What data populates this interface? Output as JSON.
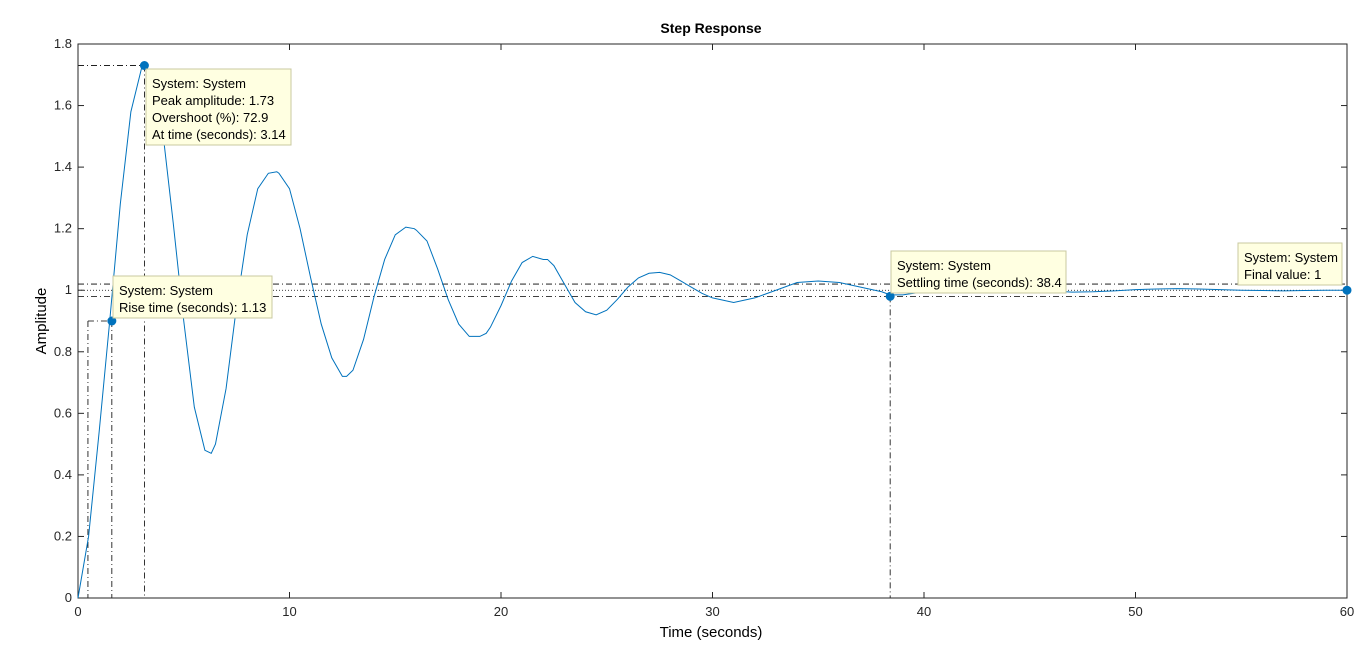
{
  "chart_data": {
    "type": "line",
    "title": "Step Response",
    "xlabel": "Time (seconds)",
    "ylabel": "Amplitude",
    "xlim": [
      0,
      60
    ],
    "ylim": [
      0,
      1.8
    ],
    "x_ticks": [
      0,
      10,
      20,
      30,
      40,
      50,
      60
    ],
    "x_tick_labels": [
      "0",
      "10",
      "20",
      "30",
      "40",
      "50",
      "60"
    ],
    "y_ticks": [
      0,
      0.2,
      0.4,
      0.6,
      0.8,
      1,
      1.2,
      1.4,
      1.6,
      1.8
    ],
    "y_tick_labels": [
      "0",
      "0.2",
      "0.4",
      "0.6",
      "0.8",
      "1",
      "1.2",
      "1.4",
      "1.6",
      "1.8"
    ],
    "grid": false,
    "legend": "none",
    "colors": {
      "line": "#0072BD",
      "marker": "#0072BD",
      "tip_bg": "#FFFFE1",
      "tip_border": "#C8C8A0"
    },
    "system": {
      "final_value": 1,
      "peak_amplitude": 1.73,
      "overshoot_pct": 72.9,
      "peak_time": 3.14,
      "rise_time": 1.13,
      "settling_time": 38.4,
      "end_time": 60,
      "settle_band_pct": 2
    },
    "series": [
      {
        "x": [
          0,
          0.5,
          1,
          1.5,
          2,
          2.5,
          3,
          3.14,
          3.5,
          4,
          4.5,
          5,
          5.5,
          6,
          6.3,
          6.5,
          7,
          7.5,
          8,
          8.5,
          9,
          9.4,
          9.5,
          10,
          10.5,
          11,
          11.5,
          12,
          12.5,
          12.7,
          13,
          13.5,
          14,
          14.5,
          15,
          15.5,
          15.9,
          16,
          16.5,
          17,
          17.5,
          18,
          18.5,
          19,
          19.3,
          19.5,
          20,
          20.5,
          21,
          21.5,
          22,
          22.2,
          22.5,
          23,
          23.5,
          24,
          24.5,
          25,
          25.5,
          26,
          26.5,
          27,
          27.5,
          28,
          28.5,
          29,
          29.5,
          30,
          31,
          32,
          33,
          34,
          35,
          36,
          37,
          38,
          38.4,
          39,
          40,
          41,
          42,
          43,
          44,
          45,
          46,
          47,
          48,
          49,
          50,
          51,
          52,
          53,
          54,
          55,
          56,
          57,
          58,
          59,
          60
        ],
        "y": [
          0,
          0.2,
          0.54,
          0.9,
          1.28,
          1.58,
          1.72,
          1.73,
          1.7,
          1.52,
          1.22,
          0.9,
          0.62,
          0.48,
          0.47,
          0.5,
          0.68,
          0.95,
          1.18,
          1.33,
          1.38,
          1.385,
          1.38,
          1.33,
          1.2,
          1.04,
          0.89,
          0.78,
          0.72,
          0.72,
          0.74,
          0.84,
          0.98,
          1.1,
          1.18,
          1.205,
          1.2,
          1.195,
          1.16,
          1.07,
          0.97,
          0.89,
          0.85,
          0.85,
          0.86,
          0.88,
          0.95,
          1.03,
          1.09,
          1.11,
          1.1,
          1.1,
          1.08,
          1.02,
          0.96,
          0.93,
          0.92,
          0.935,
          0.97,
          1.01,
          1.04,
          1.055,
          1.058,
          1.05,
          1.03,
          1.01,
          0.99,
          0.975,
          0.96,
          0.975,
          1.0,
          1.025,
          1.03,
          1.025,
          1.01,
          0.995,
          0.985,
          0.985,
          0.995,
          1.005,
          1.012,
          1.014,
          1.01,
          1.004,
          0.998,
          0.994,
          0.995,
          0.998,
          1.002,
          1.004,
          1.005,
          1.004,
          1.002,
          1.0,
          0.999,
          0.998,
          0.999,
          1.0,
          1.0
        ]
      }
    ],
    "datatips": [
      {
        "lines": [
          "System: System",
          "Peak amplitude: 1.73",
          "Overshoot (%): 72.9",
          "At time (seconds): 3.14"
        ]
      },
      {
        "lines": [
          "System: System",
          "Rise time (seconds): 1.13"
        ]
      },
      {
        "lines": [
          "System: System",
          "Settling time (seconds): 38.4"
        ]
      },
      {
        "lines": [
          "System: System",
          "Final value: 1"
        ]
      }
    ]
  }
}
